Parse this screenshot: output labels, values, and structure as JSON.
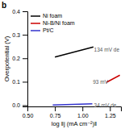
{
  "chart_data": {
    "type": "line",
    "title": "b",
    "xlabel": "log ‖j (mA cm⁻²)‖",
    "ylabel": "Overpotential (V)",
    "xlim": [
      0.5,
      1.35
    ],
    "ylim": [
      -0.005,
      0.4
    ],
    "xticks": [
      {
        "value": 0.5,
        "label": "0.50"
      },
      {
        "value": 0.75,
        "label": "0.75"
      },
      {
        "value": 1.0,
        "label": "1.00"
      },
      {
        "value": 1.25,
        "label": "1.25"
      }
    ],
    "yticks": [
      {
        "value": 0.0,
        "label": "0.0"
      },
      0.1,
      0.2,
      0.3,
      0.4
    ],
    "series": [
      {
        "name": "Ni foam",
        "color": "#000000",
        "x": [
          0.75,
          1.1
        ],
        "values": [
          0.205,
          0.248
        ]
      },
      {
        "name": "Ni-B/Ni foam",
        "color": "#cc0000",
        "x": [
          1.22,
          1.34
        ],
        "values": [
          0.098,
          0.128
        ]
      },
      {
        "name": "Pt/C",
        "color": "#3333cc",
        "x": [
          0.73,
          1.09
        ],
        "values": [
          0.001,
          0.006
        ]
      }
    ],
    "annotations": [
      {
        "text": "134 mV de",
        "x": 1.105,
        "y": 0.237
      },
      {
        "text": "93 mV",
        "x": 1.095,
        "y": 0.1
      },
      {
        "text": "34 mV de",
        "x": 1.105,
        "y": -0.002
      }
    ],
    "legend": "upper left",
    "grid": false
  }
}
